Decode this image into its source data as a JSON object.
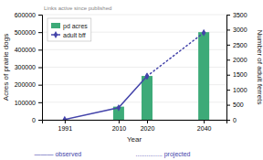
{
  "chart_data": {
    "type": "bar",
    "x_label": "Year",
    "y_label": "Acres of prairie dogs",
    "y2_label": "Number of adult ferrets",
    "series": [
      {
        "name": "pd acres",
        "type": "bar",
        "x": [
          2010,
          2020,
          2040
        ],
        "values": [
          75000,
          250000,
          500000
        ],
        "color": "#3daa78"
      },
      {
        "name": "adult bff",
        "type": "line",
        "axis": "y2",
        "x": [
          1991,
          2010,
          2020
        ],
        "values": [
          10,
          400,
          1450
        ],
        "color": "#4444aa",
        "marker": "diamond",
        "line_style": "solid"
      },
      {
        "type": "line",
        "axis": "y2",
        "x": [
          2020,
          2040
        ],
        "values": [
          1450,
          2900
        ],
        "color": "#4444aa",
        "marker": "diamond",
        "line_style": "dotted"
      }
    ],
    "xlim": [
      1983,
      2048
    ],
    "xticks": [
      1991,
      2010,
      2020,
      2040
    ],
    "ylim": [
      0,
      600000
    ],
    "yticks": [
      0,
      100000,
      200000,
      300000,
      400000,
      500000,
      600000
    ],
    "y2lim": [
      0,
      3500
    ],
    "y2ticks": [
      0,
      500,
      1000,
      1500,
      2000,
      2500,
      3000,
      3500
    ],
    "grid": true,
    "legend": "upper left",
    "annotations": [
      "Links active since published",
      "———  observed",
      "...............  projected"
    ]
  }
}
